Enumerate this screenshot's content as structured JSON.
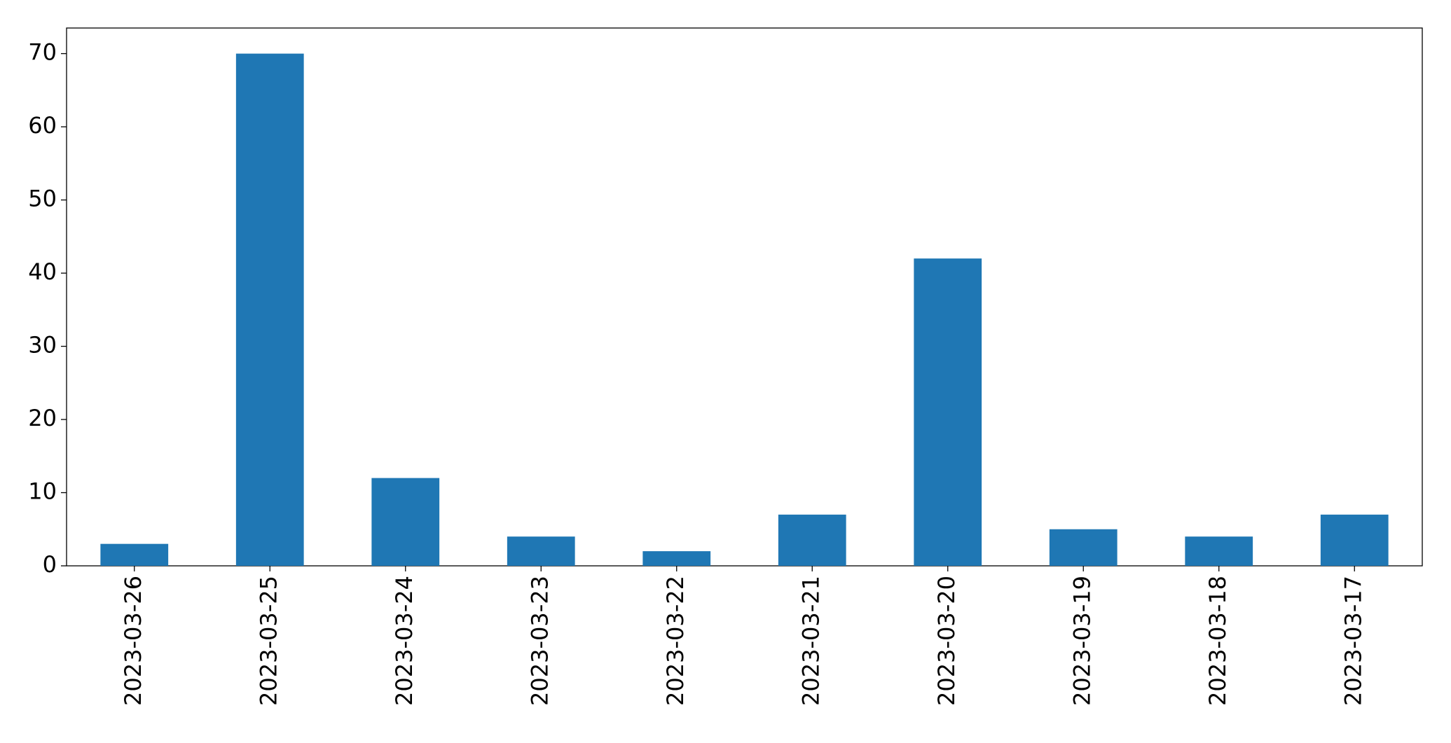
{
  "chart_data": {
    "type": "bar",
    "categories": [
      "2023-03-26",
      "2023-03-25",
      "2023-03-24",
      "2023-03-23",
      "2023-03-22",
      "2023-03-21",
      "2023-03-20",
      "2023-03-19",
      "2023-03-18",
      "2023-03-17"
    ],
    "values": [
      3,
      70,
      12,
      4,
      2,
      7,
      42,
      5,
      4,
      7
    ],
    "color": "#1f77b4",
    "ylim": [
      0,
      73.5
    ],
    "yticks": [
      0,
      10,
      20,
      30,
      40,
      50,
      60,
      70
    ],
    "grid": false
  }
}
